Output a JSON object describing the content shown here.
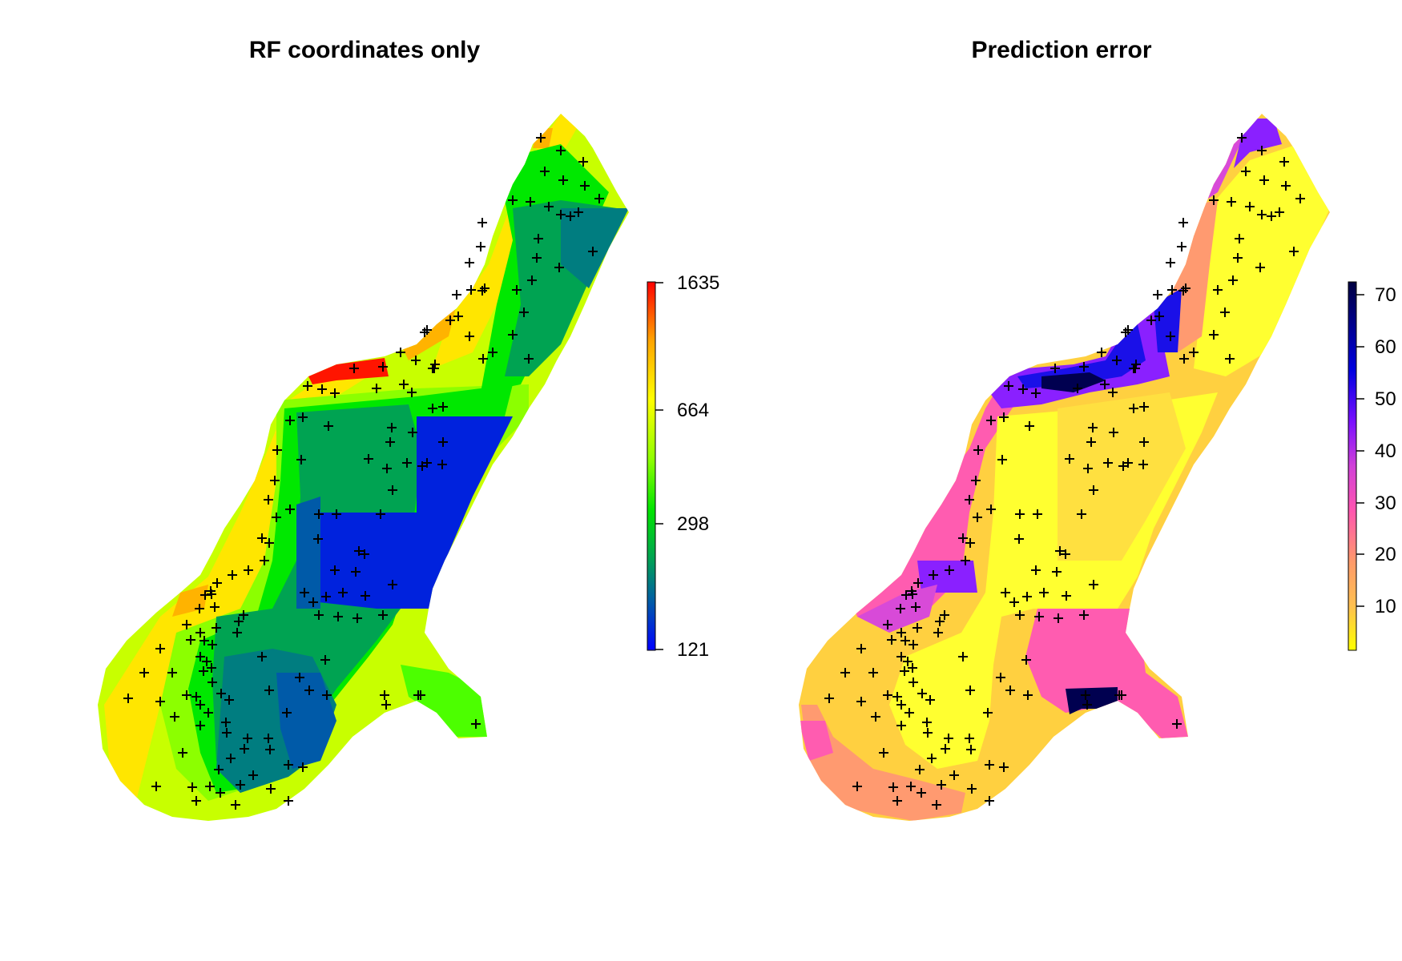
{
  "panels": [
    {
      "title": "RF coordinates only",
      "legend": {
        "ticks": [
          "1635",
          "664",
          "298",
          "121"
        ],
        "colors": [
          "#ff0000",
          "#ff6a00",
          "#ffa500",
          "#ffd400",
          "#ffff00",
          "#c8ff00",
          "#90ff00",
          "#4cff00",
          "#00e400",
          "#00a352",
          "#007d80",
          "#005aa8",
          "#0033cc",
          "#0000ff"
        ],
        "low_value": 121,
        "high_value": 1635,
        "scale": "log"
      },
      "zones": {
        "light_yellow": "#c8ff00",
        "yellow": "#ffe600",
        "orange": "#ffb300",
        "red": "#ff1500",
        "lime": "#8cff00",
        "green": "#00e800",
        "dark_green": "#00a352",
        "teal": "#007d80",
        "blue_teal": "#005aa8",
        "blue": "#0022dd"
      }
    },
    {
      "title": "Prediction error",
      "legend": {
        "ticks": [
          "70",
          "60",
          "50",
          "40",
          "30",
          "20",
          "10"
        ],
        "colors": [
          "#ffff00",
          "#ffe040",
          "#ffc050",
          "#ff9a6a",
          "#ff7a90",
          "#ff55b0",
          "#e040d0",
          "#b030f0",
          "#7a10ff",
          "#3010f5",
          "#0000e0",
          "#000090",
          "#000040"
        ],
        "low_value": 1,
        "high_value": 72,
        "scale": "linear"
      },
      "zones": {
        "yellow": "#ffff30",
        "gold": "#ffd040",
        "salmon": "#ff9a70",
        "pink": "#ff5cb0",
        "magenta": "#d84ad8",
        "purple": "#8a20ff",
        "blue": "#1a10e8",
        "navy": "#000050"
      }
    }
  ]
}
